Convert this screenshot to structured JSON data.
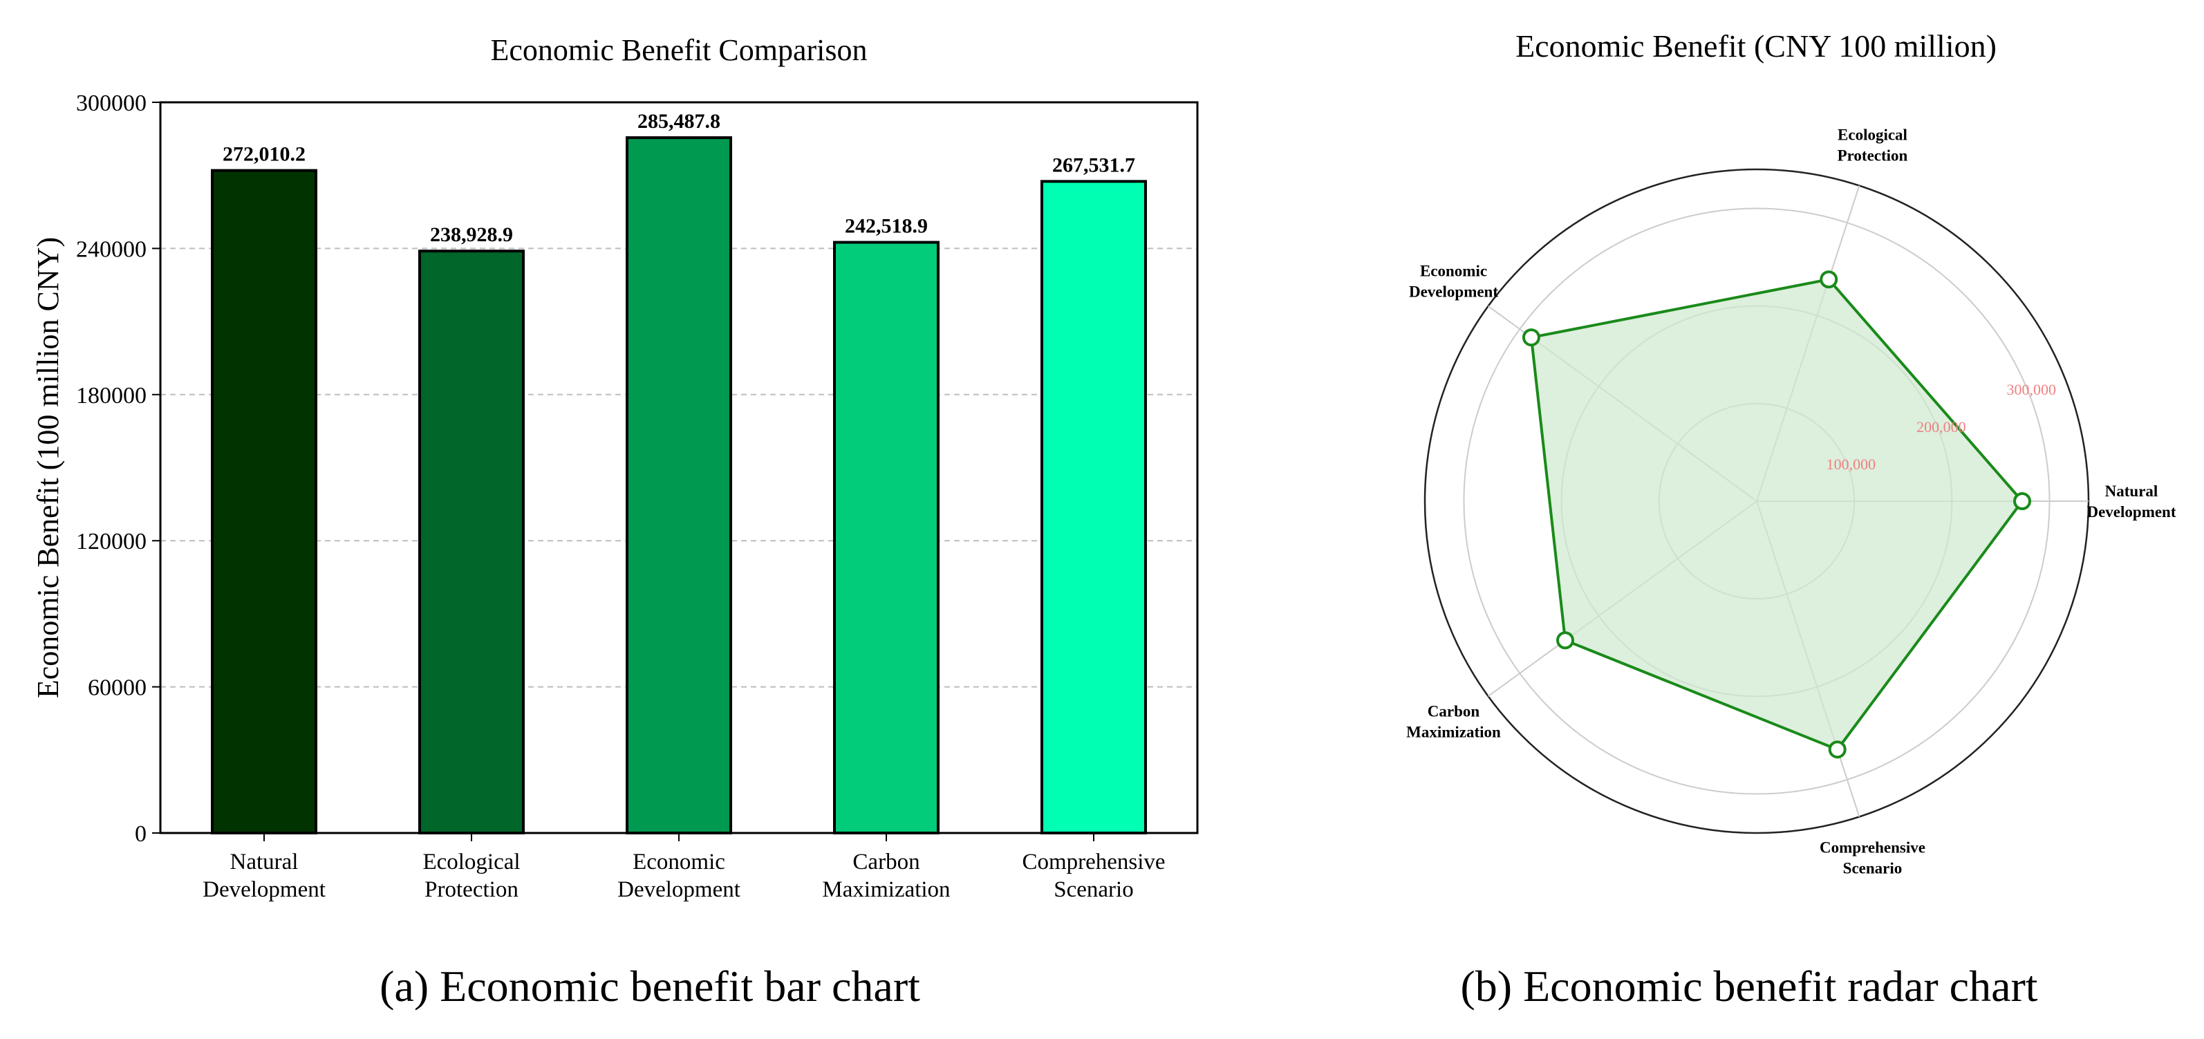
{
  "captions": {
    "bar": "(a) Economic benefit bar chart",
    "radar": "(b) Economic benefit radar chart"
  },
  "colors": {
    "bars": [
      "#003300",
      "#006629",
      "#009950",
      "#00cc7a",
      "#00ffb2"
    ],
    "radar_line": "#1a8a1a",
    "radar_fill": "#cfe8cf",
    "radial_tick_label": "#f08080"
  },
  "chart_data": [
    {
      "type": "bar",
      "title": "Economic Benefit Comparison",
      "xlabel": "",
      "ylabel": "Economic Benefit (100 million CNY)",
      "categories": [
        [
          "Natural",
          "Development"
        ],
        [
          "Ecological",
          "Protection"
        ],
        [
          "Economic",
          "Development"
        ],
        [
          "Carbon",
          "Maximization"
        ],
        [
          "Comprehensive",
          "Scenario"
        ]
      ],
      "values": [
        272010.2,
        238928.9,
        285487.8,
        242518.9,
        267531.7
      ],
      "value_labels": [
        "272,010.2",
        "238,928.9",
        "285,487.8",
        "242,518.9",
        "267,531.7"
      ],
      "ylim": [
        0,
        300000
      ],
      "yticks": [
        0,
        60000,
        120000,
        180000,
        240000,
        300000
      ],
      "ytick_labels": [
        "0",
        "60000",
        "120000",
        "180000",
        "240000",
        "300000"
      ],
      "grid": "y-dashed"
    },
    {
      "type": "radar",
      "title": "Economic Benefit (CNY 100 million)",
      "axes": [
        [
          "Natural",
          "Development"
        ],
        [
          "Ecological",
          "Protection"
        ],
        [
          "Economic",
          "Development"
        ],
        [
          "Carbon",
          "Maximization"
        ],
        [
          "Comprehensive",
          "Scenario"
        ]
      ],
      "values": [
        272010.2,
        238928.9,
        285487.8,
        242518.9,
        267531.7
      ],
      "rlim": [
        0,
        340000
      ],
      "rticks": [
        100000,
        200000,
        300000
      ],
      "rtick_labels": [
        "100,000",
        "200,000",
        "300,000"
      ],
      "grid": true
    }
  ]
}
